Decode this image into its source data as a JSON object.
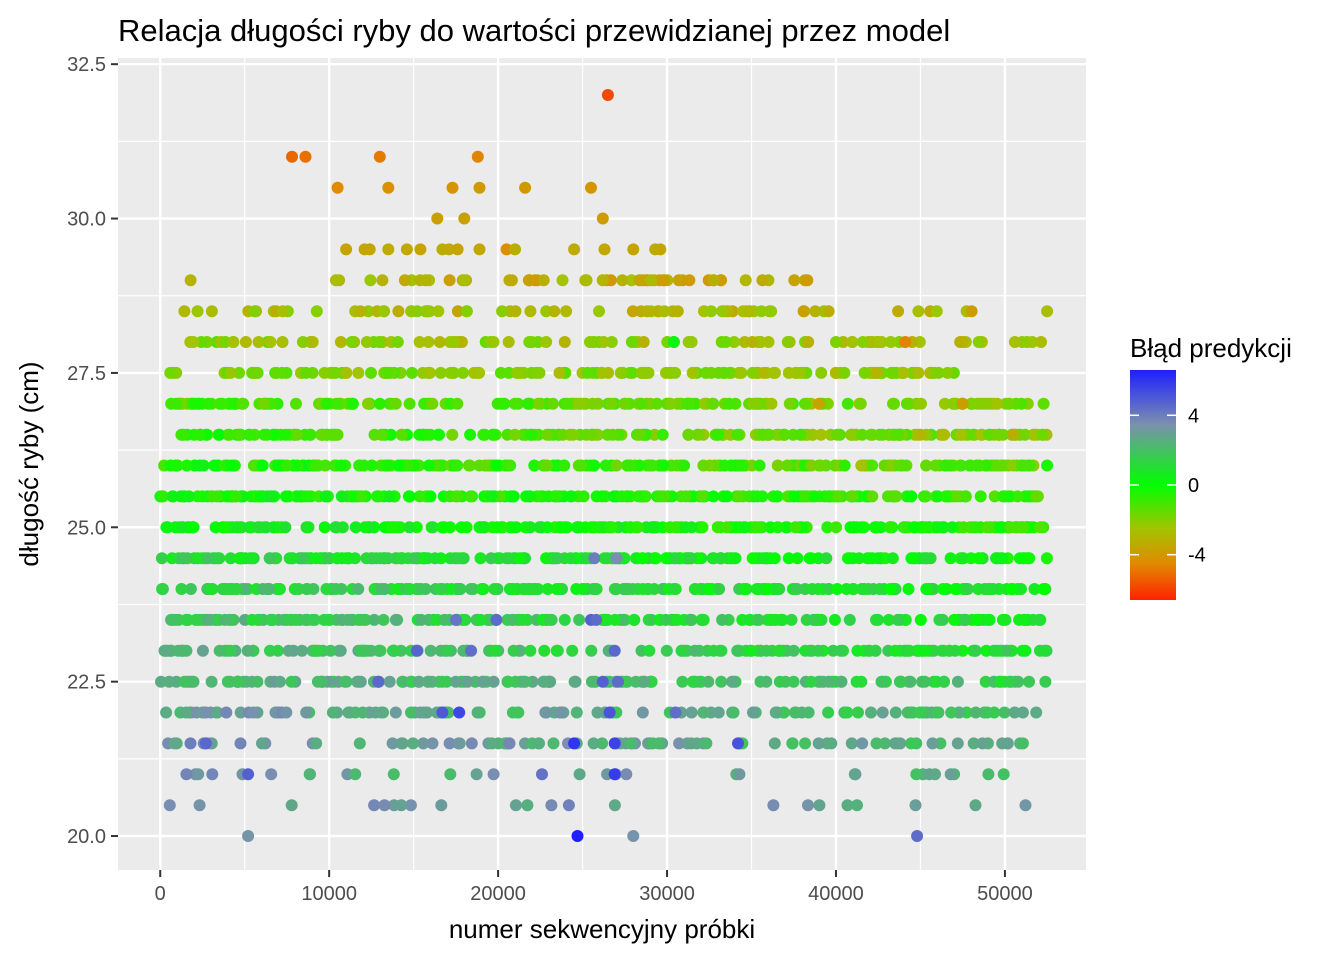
{
  "chart_data": {
    "type": "scatter",
    "title": "Relacja długości ryby do wartości przewidzianej przez model",
    "xlabel": "numer sekwencyjny próbki",
    "ylabel": "długość ryby (cm)",
    "xlim": [
      -2500,
      54800
    ],
    "ylim": [
      19.45,
      32.6
    ],
    "x_ticks": [
      0,
      10000,
      20000,
      30000,
      40000,
      50000
    ],
    "x_tick_labels": [
      "0",
      "10000",
      "20000",
      "30000",
      "40000",
      "50000"
    ],
    "y_ticks": [
      20.0,
      22.5,
      25.0,
      27.5,
      30.0,
      32.5
    ],
    "y_tick_labels": [
      "20.0",
      "22.5",
      "25.0",
      "27.5",
      "30.0",
      "32.5"
    ],
    "grid": true,
    "panel_background": "#ebebeb",
    "grid_color": "#ffffff",
    "legend": {
      "title": "Błąd predykcji",
      "placement": "right",
      "range": [
        -6.6,
        6.6
      ],
      "tick_values": [
        4,
        0,
        -4
      ],
      "tick_labels": [
        "4",
        "0",
        "-4"
      ],
      "gradient": [
        {
          "value": 6.6,
          "color": "#1f1fff"
        },
        {
          "value": 3.5,
          "color": "#7a8fb0"
        },
        {
          "value": 0,
          "color": "#00ff00"
        },
        {
          "value": -2.5,
          "color": "#a3c400"
        },
        {
          "value": -4.5,
          "color": "#e08a00"
        },
        {
          "value": -6.6,
          "color": "#ff2200"
        }
      ]
    },
    "series": [
      {
        "rows": [
          {
            "y": 32.0,
            "x": [
              26500
            ],
            "e": [
              -5.8
            ]
          },
          {
            "y": 31.0,
            "x": [
              7800,
              8600,
              13000,
              18800
            ],
            "e": [
              -5.2,
              -5.0,
              -4.8,
              -4.6
            ]
          },
          {
            "y": 30.5,
            "x": [
              10500,
              13500,
              17300,
              18900,
              21600,
              25500
            ],
            "e": [
              -4.5,
              -4.3,
              -4.2,
              -4.0,
              -4.0,
              -4.1
            ]
          },
          {
            "y": 30.0,
            "x": [
              16400,
              18000,
              26200
            ],
            "e": [
              -3.8,
              -3.7,
              -3.9
            ]
          },
          {
            "y": 29.5,
            "x": [
              11000,
              12100,
              12400,
              13500,
              14600,
              15400,
              16700,
              17100,
              17600,
              18900,
              20500,
              21000,
              24500,
              26300,
              28000,
              29300,
              29600
            ],
            "e": [
              -3.6,
              -3.5,
              -3.6,
              -3.4,
              -3.5,
              -3.6,
              -3.3,
              -3.4,
              -3.6,
              -3.5,
              -4.4,
              -3.3,
              -3.4,
              -3.5,
              -3.6,
              -3.4,
              -3.5
            ]
          },
          {
            "y": 29.0,
            "x_from": 10000,
            "x_to": 38300,
            "n": 52,
            "e_from": -3.0,
            "e_to": -3.6,
            "extra_x": [
              1800,
              38300
            ],
            "extra_e": [
              -3.1,
              -3.9
            ]
          },
          {
            "y": 28.5,
            "x_from": 1000,
            "x_to": 49200,
            "n": 70,
            "e_from": -2.6,
            "e_to": -3.1,
            "extra_x": [
              34900,
              52500
            ],
            "extra_e": [
              -2.8,
              -2.7
            ]
          },
          {
            "y": 28.0,
            "x_from": 1100,
            "x_to": 52500,
            "n": 95,
            "e_from": -2.1,
            "e_to": -2.6,
            "extra_x": [
              44100,
              30400,
              47500
            ],
            "extra_e": [
              -4.6,
              0.3,
              -3.2
            ]
          },
          {
            "y": 27.5,
            "x_from": 500,
            "x_to": 47500,
            "n": 140,
            "e_from": -1.7,
            "e_to": -2.3,
            "extra_x": [
              40500,
              44000
            ],
            "extra_e": [
              -1.9,
              -2.6
            ]
          },
          {
            "y": 27.0,
            "x_from": 500,
            "x_to": 52500,
            "n": 170,
            "e_from": -1.0,
            "e_to": -1.9,
            "extra_x": [
              39000,
              47500
            ],
            "extra_e": [
              -3.6,
              -3.8
            ]
          },
          {
            "y": 26.5,
            "x_from": 500,
            "x_to": 52500,
            "n": 200,
            "e_from": -0.5,
            "e_to": -2.2,
            "extra_x": [
              45000,
              50500
            ],
            "extra_e": [
              -3.0,
              -3.2
            ]
          },
          {
            "y": 26.0,
            "x_from": 0,
            "x_to": 52500,
            "n": 210,
            "e_from": -0.3,
            "e_to": -1.5,
            "extra_x": [
              41500,
              52500
            ],
            "extra_e": [
              -2.6,
              -0.4
            ]
          },
          {
            "y": 25.5,
            "x_from": 0,
            "x_to": 52500,
            "n": 220,
            "e_from": 0.0,
            "e_to": -0.9,
            "extra_x": [
              21900
            ],
            "extra_e": [
              0.3
            ]
          },
          {
            "y": 25.0,
            "x_from": 0,
            "x_to": 52500,
            "n": 220,
            "e_from": 0.4,
            "e_to": -0.5,
            "extra_x": [
              21900,
              21900
            ],
            "extra_e": [
              0.2,
              0.6
            ]
          },
          {
            "y": 24.5,
            "x_from": 0,
            "x_to": 52500,
            "n": 220,
            "e_from": 1.2,
            "e_to": 0.2,
            "extra_x": [
              25700,
              27000
            ],
            "extra_e": [
              4.0,
              3.5
            ]
          },
          {
            "y": 24.0,
            "x_from": 0,
            "x_to": 52500,
            "n": 200,
            "e_from": 1.7,
            "e_to": 0.5,
            "extra_x": [
              21600,
              21900,
              21900
            ],
            "extra_e": [
              1.0,
              1.2,
              1.1
            ]
          },
          {
            "y": 23.5,
            "x_from": 200,
            "x_to": 52500,
            "n": 180,
            "e_from": 2.0,
            "e_to": 0.8,
            "extra_x": [
              17500,
              19900,
              25500,
              25800
            ],
            "extra_e": [
              4.2,
              4.5,
              4.8,
              4.5
            ]
          },
          {
            "y": 23.0,
            "x_from": 100,
            "x_to": 52500,
            "n": 160,
            "e_from": 2.3,
            "e_to": 1.0,
            "extra_x": [
              15200,
              18400,
              26900
            ],
            "extra_e": [
              4.7,
              4.4,
              4.6
            ]
          },
          {
            "y": 22.5,
            "x_from": 0,
            "x_to": 52500,
            "n": 150,
            "e_from": 2.6,
            "e_to": 1.6,
            "extra_x": [
              12900,
              26200,
              27100
            ],
            "extra_e": [
              4.6,
              4.8,
              4.5
            ]
          },
          {
            "y": 22.0,
            "x_from": 0,
            "x_to": 52500,
            "n": 120,
            "e_from": 3.0,
            "e_to": 2.0,
            "extra_x": [
              16700,
              17700,
              26600,
              30500
            ],
            "extra_e": [
              5.0,
              5.5,
              5.1,
              4.4
            ]
          },
          {
            "y": 21.5,
            "x_from": 0,
            "x_to": 52000,
            "n": 90,
            "e_from": 3.2,
            "e_to": 2.4,
            "extra_x": [
              2700,
              24500,
              26900,
              34200
            ],
            "extra_e": [
              4.6,
              6.0,
              5.6,
              5.2
            ]
          },
          {
            "y": 21.0,
            "x_from": 300,
            "x_to": 52000,
            "n": 30,
            "e_from": 3.0,
            "e_to": 2.6,
            "extra_x": [
              5200,
              22600,
              26900
            ],
            "extra_e": [
              4.8,
              4.3,
              5.8
            ]
          },
          {
            "y": 20.5,
            "x_from": 0,
            "x_to": 51800,
            "n": 22,
            "e_from": 3.4,
            "e_to": 3.0,
            "extra_x": [],
            "extra_e": []
          },
          {
            "y": 20.0,
            "x": [
              5200,
              24700,
              28000,
              44800
            ],
            "e": [
              3.3,
              6.6,
              3.4,
              4.5
            ]
          }
        ]
      }
    ]
  }
}
